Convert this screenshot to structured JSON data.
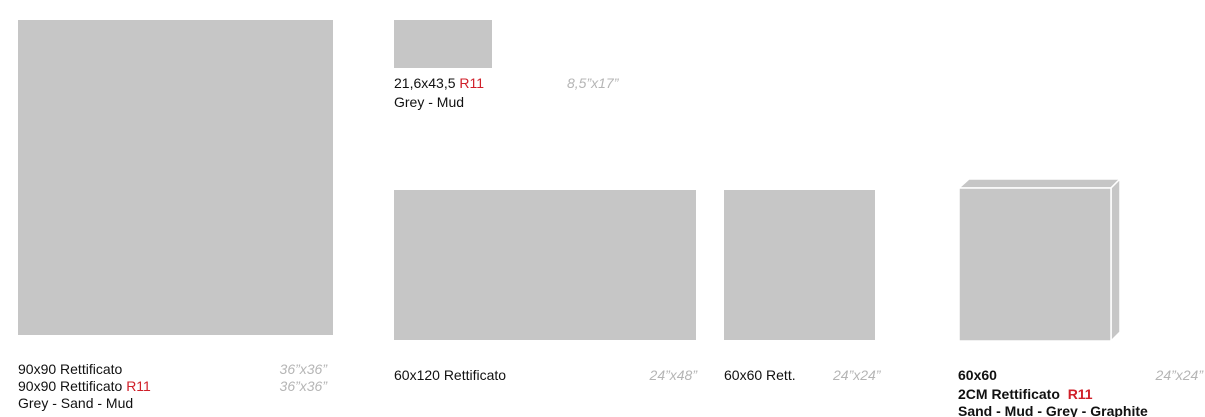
{
  "tiles": [
    {
      "lines": [
        {
          "text": "90x90 Rettificato",
          "imperial": "36”x36”"
        },
        {
          "text": "90x90 Rettificato",
          "tag": "R11",
          "imperial": "36”x36”"
        },
        {
          "text": "Grey - Sand - Mud"
        }
      ]
    },
    {
      "lines": [
        {
          "text": "21,6x43,5",
          "tag": "R11",
          "imperial": "8,5”x17”"
        },
        {
          "text": "Grey - Mud"
        }
      ]
    },
    {
      "lines": [
        {
          "text": "60x120 Rettificato",
          "imperial": "24”x48”"
        }
      ]
    },
    {
      "lines": [
        {
          "text": "60x60 Rett.",
          "imperial": "24”x24”"
        }
      ]
    },
    {
      "lines": [
        {
          "text": "60x60",
          "imperial": "24”x24”"
        },
        {
          "text": "2CM Rettificato",
          "tag": "R11"
        },
        {
          "text": "Sand - Mud - Grey - Graphite"
        }
      ]
    }
  ]
}
